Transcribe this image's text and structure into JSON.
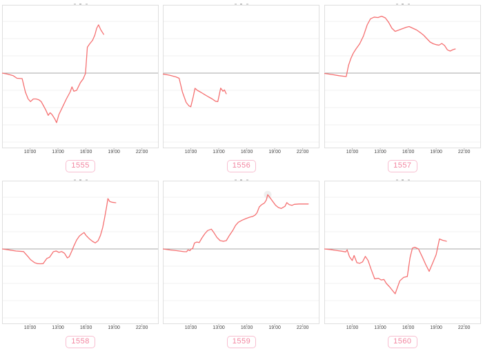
{
  "page": {
    "background": "#ffffff"
  },
  "colors": {
    "line": "#f56f70",
    "zero_line": "#a7a7a7",
    "gridline": "#f2f2f2",
    "panel_border": "#dedede",
    "tick_mark": "#b3b3b3",
    "tick_text": "#3f3f3f",
    "badge_text": "#f2849f",
    "badge_border": "#f8bed0",
    "halo": "#e9e9e9"
  },
  "chart_data": [
    {
      "type": "line",
      "label": "1555",
      "x_ticks": [
        {
          "hour": 10,
          "label": "10:00"
        },
        {
          "hour": 13,
          "label": "13:00"
        },
        {
          "hour": 16,
          "label": "16:00"
        },
        {
          "hour": 19,
          "label": "19:00"
        },
        {
          "hour": 22,
          "label": "22:00"
        }
      ],
      "x_range_hours": [
        7,
        23.8
      ],
      "y_range_units": [
        -4.36,
        3.96
      ],
      "y_note": "unlabeled axis; 1 unit = one gridline spacing; 0 = dark baseline",
      "grid": "horizontal-only",
      "points": [
        [
          7.0,
          0.0
        ],
        [
          7.6,
          -0.06
        ],
        [
          8.2,
          -0.15
        ],
        [
          8.6,
          -0.3
        ],
        [
          9.15,
          -0.32
        ],
        [
          9.5,
          -1.1
        ],
        [
          9.8,
          -1.5
        ],
        [
          10.05,
          -1.65
        ],
        [
          10.35,
          -1.5
        ],
        [
          10.65,
          -1.5
        ],
        [
          10.95,
          -1.55
        ],
        [
          11.2,
          -1.65
        ],
        [
          11.45,
          -1.9
        ],
        [
          11.7,
          -2.15
        ],
        [
          11.95,
          -2.45
        ],
        [
          12.15,
          -2.3
        ],
        [
          12.35,
          -2.4
        ],
        [
          12.65,
          -2.65
        ],
        [
          12.85,
          -2.87
        ],
        [
          13.1,
          -2.4
        ],
        [
          13.5,
          -1.95
        ],
        [
          13.9,
          -1.5
        ],
        [
          14.3,
          -1.1
        ],
        [
          14.5,
          -0.8
        ],
        [
          14.7,
          -1.05
        ],
        [
          15.0,
          -1.0
        ],
        [
          15.4,
          -0.55
        ],
        [
          15.7,
          -0.33
        ],
        [
          15.95,
          -0.02
        ],
        [
          16.15,
          1.5
        ],
        [
          16.4,
          1.7
        ],
        [
          16.7,
          1.9
        ],
        [
          16.95,
          2.2
        ],
        [
          17.15,
          2.6
        ],
        [
          17.35,
          2.8
        ],
        [
          17.6,
          2.5
        ],
        [
          17.9,
          2.25
        ]
      ]
    },
    {
      "type": "line",
      "label": "1556",
      "x_ticks": [
        {
          "hour": 10,
          "label": "10:00"
        },
        {
          "hour": 13,
          "label": "13:00"
        },
        {
          "hour": 16,
          "label": "16:00"
        },
        {
          "hour": 19,
          "label": "19:00"
        },
        {
          "hour": 22,
          "label": "22:00"
        }
      ],
      "x_range_hours": [
        7,
        23.8
      ],
      "y_range_units": [
        -4.36,
        3.96
      ],
      "y_note": "unlabeled axis; 1 unit = one gridline spacing; 0 = dark baseline",
      "grid": "horizontal-only",
      "points": [
        [
          7.0,
          -0.05
        ],
        [
          7.7,
          -0.12
        ],
        [
          8.4,
          -0.22
        ],
        [
          8.75,
          -0.3
        ],
        [
          9.1,
          -1.1
        ],
        [
          9.5,
          -1.7
        ],
        [
          9.8,
          -1.9
        ],
        [
          10.0,
          -1.95
        ],
        [
          10.25,
          -1.4
        ],
        [
          10.45,
          -0.88
        ],
        [
          10.7,
          -1.0
        ],
        [
          11.1,
          -1.12
        ],
        [
          11.5,
          -1.25
        ],
        [
          11.9,
          -1.38
        ],
        [
          12.3,
          -1.5
        ],
        [
          12.65,
          -1.63
        ],
        [
          12.9,
          -1.65
        ],
        [
          13.2,
          -0.87
        ],
        [
          13.45,
          -1.05
        ],
        [
          13.6,
          -0.97
        ],
        [
          13.8,
          -1.2
        ]
      ]
    },
    {
      "type": "line",
      "label": "1557",
      "x_ticks": [
        {
          "hour": 10,
          "label": "10:00"
        },
        {
          "hour": 13,
          "label": "13:00"
        },
        {
          "hour": 16,
          "label": "16:00"
        },
        {
          "hour": 19,
          "label": "19:00"
        },
        {
          "hour": 22,
          "label": "22:00"
        }
      ],
      "x_range_hours": [
        7,
        23.8
      ],
      "y_range_units": [
        -4.36,
        3.96
      ],
      "y_note": "unlabeled axis; 1 unit = one gridline spacing; 0 = dark baseline",
      "grid": "horizontal-only",
      "points": [
        [
          7.0,
          -0.02
        ],
        [
          7.8,
          -0.08
        ],
        [
          8.6,
          -0.15
        ],
        [
          9.35,
          -0.2
        ],
        [
          9.6,
          0.45
        ],
        [
          9.85,
          0.85
        ],
        [
          10.1,
          1.15
        ],
        [
          10.4,
          1.4
        ],
        [
          10.8,
          1.7
        ],
        [
          11.2,
          2.15
        ],
        [
          11.6,
          2.8
        ],
        [
          11.95,
          3.15
        ],
        [
          12.35,
          3.25
        ],
        [
          12.75,
          3.22
        ],
        [
          13.15,
          3.3
        ],
        [
          13.55,
          3.2
        ],
        [
          13.9,
          2.95
        ],
        [
          14.25,
          2.6
        ],
        [
          14.6,
          2.42
        ],
        [
          15.0,
          2.5
        ],
        [
          15.4,
          2.58
        ],
        [
          15.8,
          2.66
        ],
        [
          16.1,
          2.7
        ],
        [
          16.5,
          2.6
        ],
        [
          16.9,
          2.5
        ],
        [
          17.3,
          2.35
        ],
        [
          17.65,
          2.2
        ],
        [
          18.0,
          2.0
        ],
        [
          18.35,
          1.8
        ],
        [
          18.7,
          1.7
        ],
        [
          19.0,
          1.65
        ],
        [
          19.3,
          1.62
        ],
        [
          19.6,
          1.72
        ],
        [
          19.9,
          1.6
        ],
        [
          20.2,
          1.35
        ],
        [
          20.5,
          1.28
        ],
        [
          20.8,
          1.36
        ],
        [
          21.05,
          1.4
        ]
      ]
    },
    {
      "type": "line",
      "label": "1558",
      "x_ticks": [
        {
          "hour": 10,
          "label": "10:00"
        },
        {
          "hour": 13,
          "label": "13:00"
        },
        {
          "hour": 16,
          "label": "16:00"
        },
        {
          "hour": 19,
          "label": "19:00"
        },
        {
          "hour": 22,
          "label": "22:00"
        }
      ],
      "x_range_hours": [
        7,
        23.8
      ],
      "y_range_units": [
        -4.36,
        3.96
      ],
      "y_note": "unlabeled axis; 1 unit = one gridline spacing; 0 = dark baseline",
      "grid": "horizontal-only",
      "points": [
        [
          7.0,
          0.0
        ],
        [
          7.7,
          -0.05
        ],
        [
          8.5,
          -0.12
        ],
        [
          9.3,
          -0.15
        ],
        [
          9.8,
          -0.45
        ],
        [
          10.05,
          -0.62
        ],
        [
          10.5,
          -0.8
        ],
        [
          10.8,
          -0.85
        ],
        [
          11.1,
          -0.86
        ],
        [
          11.4,
          -0.85
        ],
        [
          11.8,
          -0.55
        ],
        [
          12.1,
          -0.48
        ],
        [
          12.5,
          -0.16
        ],
        [
          12.8,
          -0.12
        ],
        [
          13.1,
          -0.2
        ],
        [
          13.4,
          -0.15
        ],
        [
          13.7,
          -0.25
        ],
        [
          14.0,
          -0.52
        ],
        [
          14.2,
          -0.45
        ],
        [
          14.5,
          -0.1
        ],
        [
          14.7,
          0.17
        ],
        [
          15.0,
          0.52
        ],
        [
          15.3,
          0.75
        ],
        [
          15.6,
          0.88
        ],
        [
          15.8,
          0.95
        ],
        [
          16.0,
          0.79
        ],
        [
          16.4,
          0.57
        ],
        [
          16.7,
          0.44
        ],
        [
          17.0,
          0.35
        ],
        [
          17.3,
          0.48
        ],
        [
          17.55,
          0.79
        ],
        [
          17.8,
          1.25
        ],
        [
          18.0,
          1.8
        ],
        [
          18.2,
          2.4
        ],
        [
          18.35,
          2.92
        ],
        [
          18.55,
          2.75
        ],
        [
          18.8,
          2.71
        ],
        [
          19.2,
          2.68
        ]
      ]
    },
    {
      "type": "line",
      "label": "1559",
      "x_ticks": [
        {
          "hour": 10,
          "label": "10:00"
        },
        {
          "hour": 13,
          "label": "13:00"
        },
        {
          "hour": 16,
          "label": "16:00"
        },
        {
          "hour": 19,
          "label": "19:00"
        },
        {
          "hour": 22,
          "label": "22:00"
        }
      ],
      "x_range_hours": [
        7,
        23.8
      ],
      "y_range_units": [
        -4.36,
        3.96
      ],
      "y_note": "unlabeled axis; 1 unit = one gridline spacing; 0 = dark baseline",
      "grid": "horizontal-only",
      "halo_point": [
        18.25,
        3.15
      ],
      "points": [
        [
          7.0,
          0.0
        ],
        [
          7.8,
          -0.06
        ],
        [
          8.5,
          -0.1
        ],
        [
          9.3,
          -0.16
        ],
        [
          9.55,
          -0.16
        ],
        [
          9.7,
          -0.05
        ],
        [
          9.9,
          -0.1
        ],
        [
          10.05,
          0.0
        ],
        [
          10.2,
          0.02
        ],
        [
          10.4,
          0.35
        ],
        [
          10.65,
          0.4
        ],
        [
          10.9,
          0.37
        ],
        [
          11.2,
          0.64
        ],
        [
          11.5,
          0.88
        ],
        [
          11.8,
          1.07
        ],
        [
          12.2,
          1.15
        ],
        [
          12.5,
          0.93
        ],
        [
          12.8,
          0.67
        ],
        [
          13.15,
          0.48
        ],
        [
          13.5,
          0.45
        ],
        [
          13.8,
          0.48
        ],
        [
          14.1,
          0.75
        ],
        [
          14.5,
          1.07
        ],
        [
          14.8,
          1.37
        ],
        [
          15.1,
          1.55
        ],
        [
          15.5,
          1.67
        ],
        [
          15.9,
          1.76
        ],
        [
          16.3,
          1.84
        ],
        [
          16.65,
          1.89
        ],
        [
          16.9,
          1.97
        ],
        [
          17.1,
          2.1
        ],
        [
          17.35,
          2.44
        ],
        [
          17.6,
          2.57
        ],
        [
          17.9,
          2.67
        ],
        [
          18.1,
          2.84
        ],
        [
          18.25,
          3.15
        ],
        [
          18.5,
          2.97
        ],
        [
          18.8,
          2.75
        ],
        [
          19.1,
          2.53
        ],
        [
          19.4,
          2.4
        ],
        [
          19.7,
          2.35
        ],
        [
          20.1,
          2.47
        ],
        [
          20.3,
          2.69
        ],
        [
          20.55,
          2.57
        ],
        [
          20.85,
          2.53
        ],
        [
          21.1,
          2.59
        ],
        [
          21.6,
          2.61
        ],
        [
          22.1,
          2.61
        ],
        [
          22.6,
          2.61
        ]
      ]
    },
    {
      "type": "line",
      "label": "1560",
      "x_ticks": [
        {
          "hour": 10,
          "label": "10:00"
        },
        {
          "hour": 13,
          "label": "13:00"
        },
        {
          "hour": 16,
          "label": "16:00"
        },
        {
          "hour": 19,
          "label": "19:00"
        },
        {
          "hour": 22,
          "label": "22:00"
        }
      ],
      "x_range_hours": [
        7,
        23.8
      ],
      "y_range_units": [
        -4.36,
        3.96
      ],
      "y_note": "unlabeled axis; 1 unit = one gridline spacing; 0 = dark baseline",
      "grid": "horizontal-only",
      "points": [
        [
          7.0,
          0.0
        ],
        [
          7.6,
          -0.03
        ],
        [
          8.2,
          -0.08
        ],
        [
          8.9,
          -0.13
        ],
        [
          9.3,
          -0.17
        ],
        [
          9.45,
          -0.05
        ],
        [
          9.7,
          -0.45
        ],
        [
          10.0,
          -0.67
        ],
        [
          10.2,
          -0.38
        ],
        [
          10.5,
          -0.8
        ],
        [
          10.8,
          -0.83
        ],
        [
          11.1,
          -0.75
        ],
        [
          11.4,
          -0.43
        ],
        [
          11.7,
          -0.67
        ],
        [
          12.0,
          -1.15
        ],
        [
          12.4,
          -1.73
        ],
        [
          12.8,
          -1.7
        ],
        [
          13.1,
          -1.8
        ],
        [
          13.4,
          -1.77
        ],
        [
          13.65,
          -2.0
        ],
        [
          14.0,
          -2.2
        ],
        [
          14.3,
          -2.4
        ],
        [
          14.6,
          -2.6
        ],
        [
          15.1,
          -1.85
        ],
        [
          15.5,
          -1.65
        ],
        [
          15.9,
          -1.6
        ],
        [
          16.2,
          -0.5
        ],
        [
          16.45,
          0.05
        ],
        [
          16.7,
          0.1
        ],
        [
          17.1,
          0.0
        ],
        [
          17.5,
          -0.45
        ],
        [
          17.9,
          -0.93
        ],
        [
          18.25,
          -1.3
        ],
        [
          18.6,
          -0.85
        ],
        [
          19.0,
          -0.33
        ],
        [
          19.35,
          0.58
        ],
        [
          19.7,
          0.5
        ],
        [
          20.1,
          0.45
        ]
      ]
    }
  ]
}
